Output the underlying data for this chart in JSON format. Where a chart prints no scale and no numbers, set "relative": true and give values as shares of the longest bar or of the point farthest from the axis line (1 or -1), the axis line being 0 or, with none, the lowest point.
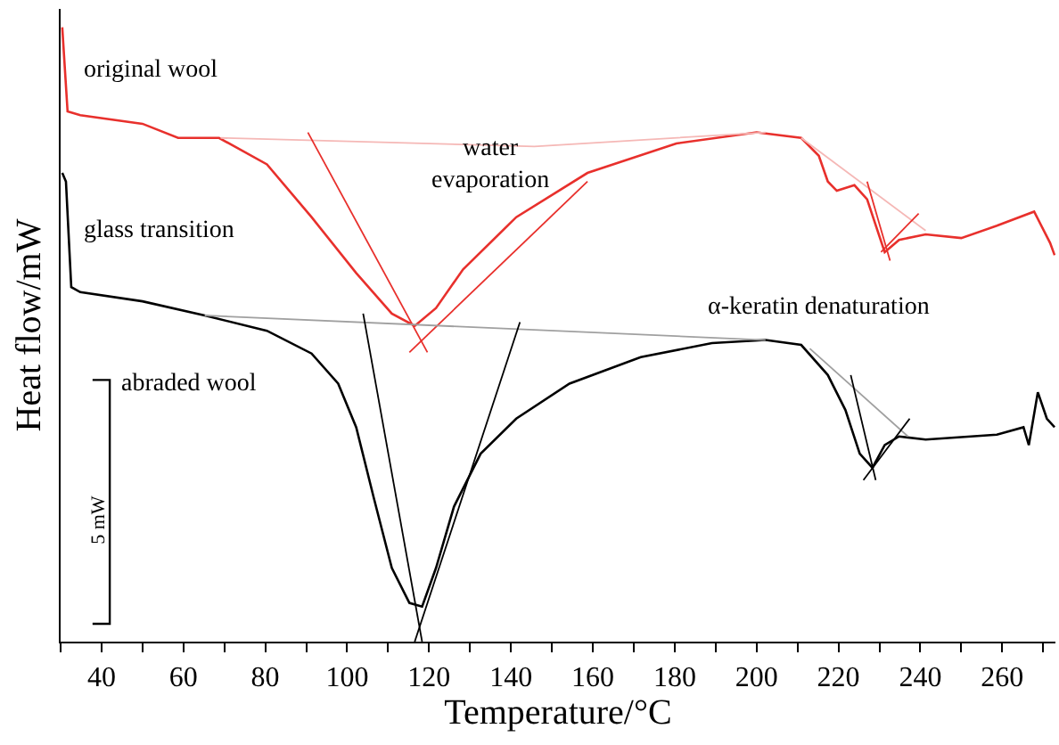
{
  "chart_data": {
    "type": "line",
    "relative": true,
    "xlabel": "Temperature/°C",
    "ylabel": "Heat flow/mW",
    "xlim": [
      30,
      273
    ],
    "xticks": [
      {
        "value": 30,
        "label": null
      },
      40,
      {
        "value": 50,
        "label": null
      },
      60,
      {
        "value": 70,
        "label": null
      },
      80,
      {
        "value": 90,
        "label": null
      },
      100,
      {
        "value": 110,
        "label": null
      },
      120,
      {
        "value": 130,
        "label": null
      },
      140,
      {
        "value": 150,
        "label": null
      },
      160,
      {
        "value": 170,
        "label": null
      },
      180,
      {
        "value": 190,
        "label": null
      },
      200,
      {
        "value": 210,
        "label": null
      },
      220,
      {
        "value": 230,
        "label": null
      },
      240,
      {
        "value": 250,
        "label": null
      },
      260,
      {
        "value": 270,
        "label": null
      }
    ],
    "tick_labels": "x",
    "marker": "none",
    "line_style": "solid",
    "annotations": [
      "original wool",
      "water\nevaporation",
      "glass transition",
      "α-keratin denaturation",
      "abraded wool",
      "5 mW"
    ],
    "series": [
      {
        "color": "#e8302c",
        "x": [
          30.4,
          31.7,
          34.8,
          50.0,
          58.7,
          68.7,
          80.4,
          91.3,
          102.2,
          110.9,
          116.5,
          121.7,
          128.3,
          141.3,
          158.7,
          180.4,
          200.0,
          210.9,
          215.2,
          217.4,
          219.6,
          223.9,
          227.0,
          231.3,
          234.8,
          241.3,
          250.0,
          258.7,
          267.8,
          271.7,
          272.8
        ],
        "values": [
          1.0,
          0.863,
          0.857,
          0.843,
          0.82,
          0.82,
          0.777,
          0.691,
          0.6,
          0.534,
          0.514,
          0.543,
          0.606,
          0.691,
          0.763,
          0.811,
          0.829,
          0.82,
          0.791,
          0.749,
          0.734,
          0.743,
          0.72,
          0.634,
          0.654,
          0.663,
          0.657,
          0.677,
          0.7,
          0.649,
          0.629
        ]
      },
      {
        "color": "#000000",
        "x": [
          30.4,
          31.3,
          32.6,
          34.8,
          50.0,
          65.2,
          80.4,
          91.3,
          97.8,
          102.2,
          106.5,
          110.9,
          115.2,
          118.3,
          121.7,
          126.1,
          132.6,
          141.3,
          154.3,
          171.7,
          189.1,
          202.2,
          210.9,
          217.4,
          221.7,
          225.2,
          228.3,
          231.3,
          234.8,
          241.3,
          258.7,
          265.2,
          266.5,
          268.7,
          270.9,
          272.8
        ],
        "values": [
          0.763,
          0.749,
          0.577,
          0.569,
          0.554,
          0.531,
          0.506,
          0.469,
          0.42,
          0.349,
          0.234,
          0.12,
          0.063,
          0.057,
          0.12,
          0.22,
          0.306,
          0.363,
          0.42,
          0.463,
          0.486,
          0.491,
          0.483,
          0.434,
          0.377,
          0.306,
          0.283,
          0.32,
          0.334,
          0.329,
          0.337,
          0.349,
          0.32,
          0.406,
          0.363,
          0.349
        ]
      },
      {
        "color": "#f5b8b6",
        "x": [
          69.1,
          145.7,
          202.2
        ],
        "values": [
          0.82,
          0.806,
          0.829
        ]
      },
      {
        "color": "#f5b8b6",
        "x": [
          210.9,
          241.3
        ],
        "values": [
          0.82,
          0.669
        ]
      },
      {
        "color": "#e8302c",
        "x": [
          90.4,
          119.6
        ],
        "values": [
          0.829,
          0.471
        ]
      },
      {
        "color": "#e8302c",
        "x": [
          115.2,
          158.7
        ],
        "values": [
          0.471,
          0.749
        ]
      },
      {
        "color": "#e8302c",
        "x": [
          227.0,
          232.6
        ],
        "values": [
          0.749,
          0.62
        ]
      },
      {
        "color": "#e8302c",
        "x": [
          230.4,
          239.6
        ],
        "values": [
          0.634,
          0.697
        ]
      },
      {
        "color": "#a0a0a0",
        "x": [
          65.2,
          202.2
        ],
        "values": [
          0.531,
          0.491
        ]
      },
      {
        "color": "#a0a0a0",
        "x": [
          213.0,
          237.0
        ],
        "values": [
          0.477,
          0.334
        ]
      },
      {
        "color": "#000000",
        "x": [
          103.9,
          118.3
        ],
        "values": [
          0.534,
          0.0
        ]
      },
      {
        "color": "#000000",
        "x": [
          116.5,
          142.2
        ],
        "values": [
          0.0,
          0.52
        ]
      },
      {
        "color": "#000000",
        "x": [
          223.0,
          229.1
        ],
        "values": [
          0.434,
          0.263
        ]
      },
      {
        "color": "#000000",
        "x": [
          226.1,
          237.4
        ],
        "values": [
          0.263,
          0.363
        ]
      }
    ]
  }
}
